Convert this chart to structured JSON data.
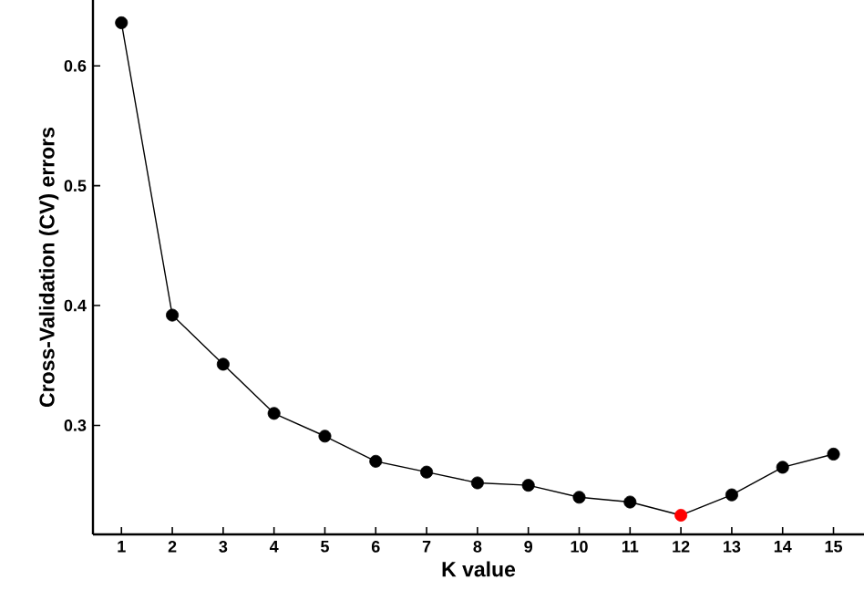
{
  "chart_data": {
    "type": "line",
    "xlabel": "K value",
    "ylabel": "Cross-Validation (CV) errors",
    "x": [
      1,
      2,
      3,
      4,
      5,
      6,
      7,
      8,
      9,
      10,
      11,
      12,
      13,
      14,
      15
    ],
    "series": [
      {
        "color": "#000000",
        "colors": [
          "#000000",
          "#000000",
          "#000000",
          "#000000",
          "#000000",
          "#000000",
          "#000000",
          "#000000",
          "#000000",
          "#000000",
          "#000000",
          "#ff0000",
          "#000000",
          "#000000",
          "#000000"
        ],
        "values": [
          0.636,
          0.392,
          0.351,
          0.31,
          0.291,
          0.27,
          0.261,
          0.252,
          0.25,
          0.24,
          0.236,
          0.225,
          0.242,
          0.265,
          0.276
        ]
      }
    ],
    "xlim": [
      0.44,
      15.6
    ],
    "ylim": [
      0.209,
      0.655
    ],
    "xticks": [
      1,
      2,
      3,
      4,
      5,
      6,
      7,
      8,
      9,
      10,
      11,
      12,
      13,
      14,
      15
    ],
    "yticks": [
      0.3,
      0.4,
      0.5,
      0.6
    ],
    "marker": "circle",
    "line_style": "solid"
  }
}
